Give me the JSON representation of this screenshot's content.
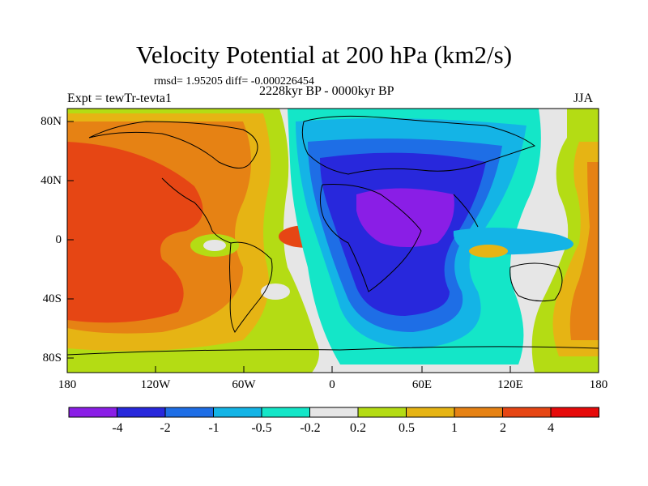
{
  "map": {
    "title": "Velocity Potential at 200 hPa (km2/s)",
    "stats": "rmsd= 1.95205 diff= -0.000226454",
    "period": "2228kyr BP - 0000kyr BP",
    "experiment": "Expt = tewTr-tevta1",
    "season": "JJA",
    "lat_ticks": [
      "80N",
      "40N",
      "0",
      "40S",
      "80S"
    ],
    "lon_ticks": [
      "180",
      "120W",
      "60W",
      "0",
      "60E",
      "120E",
      "180"
    ]
  },
  "colorbar": {
    "labels": [
      "-4",
      "-2",
      "-1",
      "-0.5",
      "-0.2",
      "0.2",
      "0.5",
      "1",
      "2",
      "4"
    ],
    "colors": [
      "#8a1ee6",
      "#2828dc",
      "#1e6ee6",
      "#14b4e6",
      "#14e6c8",
      "#e6e6e6",
      "#b4dc14",
      "#e6b414",
      "#e68214",
      "#e64614",
      "#e60a0a"
    ]
  }
}
